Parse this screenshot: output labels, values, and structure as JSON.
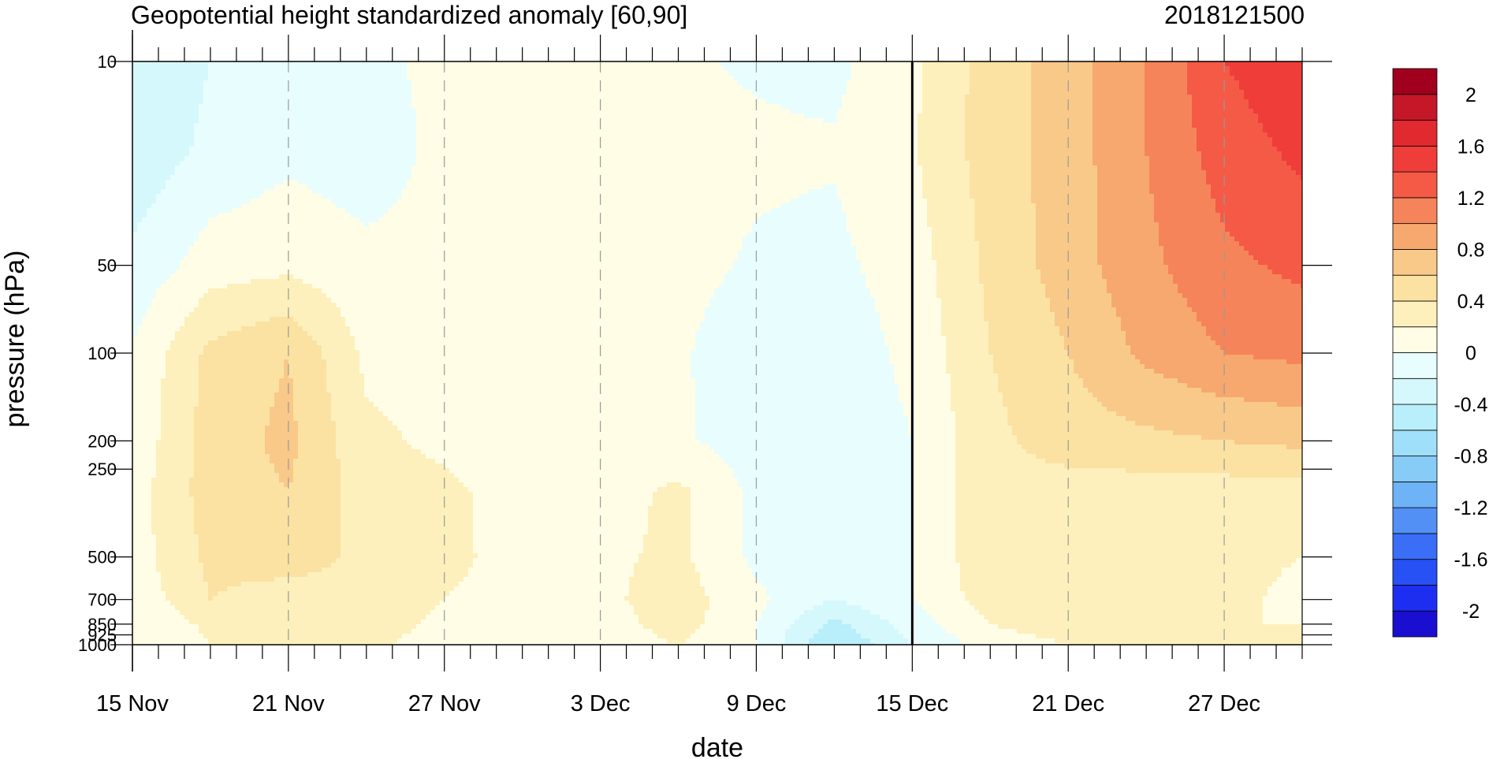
{
  "chart_data": {
    "type": "heatmap",
    "subtype": "filled-contour pressure-time cross section",
    "title": "Geopotential height standardized anomaly [60,90]",
    "title_right": "2018121500",
    "xlabel": "date",
    "ylabel": "pressure (hPa)",
    "x_ticks": [
      "15 Nov",
      "21 Nov",
      "27 Nov",
      "3 Dec",
      "9 Dec",
      "15 Dec",
      "21 Dec",
      "27 Dec"
    ],
    "x_range_days": [
      0,
      45
    ],
    "y_scale": "log",
    "y_ticks": [
      10,
      50,
      100,
      200,
      250,
      500,
      700,
      850,
      925,
      1000
    ],
    "y_range": [
      10,
      1000
    ],
    "vertical_marker": "15 Dec",
    "grid": "dashed vertical lines at labeled dates",
    "colorbar": {
      "labels": [
        "2",
        "1.6",
        "1.2",
        "0.8",
        "0.4",
        "0",
        "-0.4",
        "-0.8",
        "-1.2",
        "-1.6",
        "-2"
      ],
      "levels": [
        -2.2,
        -2,
        -1.8,
        -1.6,
        -1.4,
        -1.2,
        -1,
        -0.8,
        -0.6,
        -0.4,
        -0.2,
        0,
        0.2,
        0.4,
        0.6,
        0.8,
        1,
        1.2,
        1.4,
        1.6,
        1.8,
        2,
        2.2
      ],
      "colors": [
        "#1a0fd0",
        "#1e2ef0",
        "#2750f5",
        "#3a6ef7",
        "#5390f5",
        "#6db3f6",
        "#86ccf7",
        "#9fdff9",
        "#b9eefb",
        "#d5f8fc",
        "#e8fdfd",
        "#fffde6",
        "#fdf0bc",
        "#fbe2a2",
        "#f9c98a",
        "#f7a86e",
        "#f6845a",
        "#f45a46",
        "#ef3d3a",
        "#e02a30",
        "#c41727",
        "#a0001d"
      ]
    },
    "anomaly_grid": {
      "x_days": [
        0,
        3,
        6,
        9,
        12,
        15,
        18,
        21,
        24,
        27,
        30,
        33,
        36,
        39,
        42,
        45
      ],
      "pressure_hPa": [
        10,
        20,
        50,
        100,
        200,
        300,
        500,
        700,
        850,
        1000
      ],
      "values": [
        [
          -0.4,
          -0.2,
          -0.1,
          -0.05,
          0.05,
          0.02,
          0.03,
          0.02,
          -0.02,
          -0.05,
          0.15,
          0.5,
          0.7,
          1.0,
          1.4,
          1.55
        ],
        [
          -0.35,
          -0.15,
          -0.05,
          -0.1,
          0.05,
          0.05,
          0.05,
          0.05,
          0.03,
          0.02,
          0.18,
          0.5,
          0.7,
          1.0,
          1.3,
          1.45
        ],
        [
          -0.15,
          0.1,
          0.15,
          0.05,
          0.05,
          0.05,
          0.05,
          0.05,
          -0.02,
          -0.05,
          0.1,
          0.45,
          0.7,
          0.95,
          1.15,
          1.25
        ],
        [
          0.02,
          0.45,
          0.6,
          0.15,
          0.1,
          0.08,
          0.05,
          0.02,
          -0.1,
          -0.12,
          0.05,
          0.4,
          0.6,
          0.85,
          1.0,
          1.05
        ],
        [
          0.05,
          0.5,
          0.65,
          0.25,
          0.15,
          0.1,
          0.05,
          0.03,
          -0.1,
          -0.15,
          0.0,
          0.35,
          0.5,
          0.55,
          0.6,
          0.65
        ],
        [
          0.1,
          0.5,
          0.6,
          0.3,
          0.25,
          0.1,
          0.1,
          0.25,
          -0.05,
          -0.12,
          0.0,
          0.35,
          0.3,
          0.3,
          0.3,
          0.3
        ],
        [
          0.1,
          0.45,
          0.5,
          0.35,
          0.3,
          0.05,
          0.15,
          0.25,
          -0.05,
          -0.15,
          0.0,
          0.35,
          0.25,
          0.25,
          0.25,
          0.2
        ],
        [
          0.05,
          0.4,
          0.3,
          0.35,
          0.2,
          0.05,
          0.15,
          0.3,
          0.05,
          -0.2,
          0.0,
          0.3,
          0.25,
          0.25,
          0.25,
          0.15
        ],
        [
          0.0,
          0.25,
          0.25,
          0.3,
          0.15,
          0.05,
          0.1,
          0.3,
          0.0,
          -0.45,
          -0.1,
          0.2,
          0.3,
          0.2,
          0.2,
          0.2
        ],
        [
          0.0,
          0.2,
          0.25,
          0.25,
          0.1,
          0.05,
          0.05,
          0.2,
          0.0,
          -0.6,
          -0.2,
          0.1,
          0.2,
          0.2,
          0.2,
          0.2
        ]
      ]
    }
  }
}
